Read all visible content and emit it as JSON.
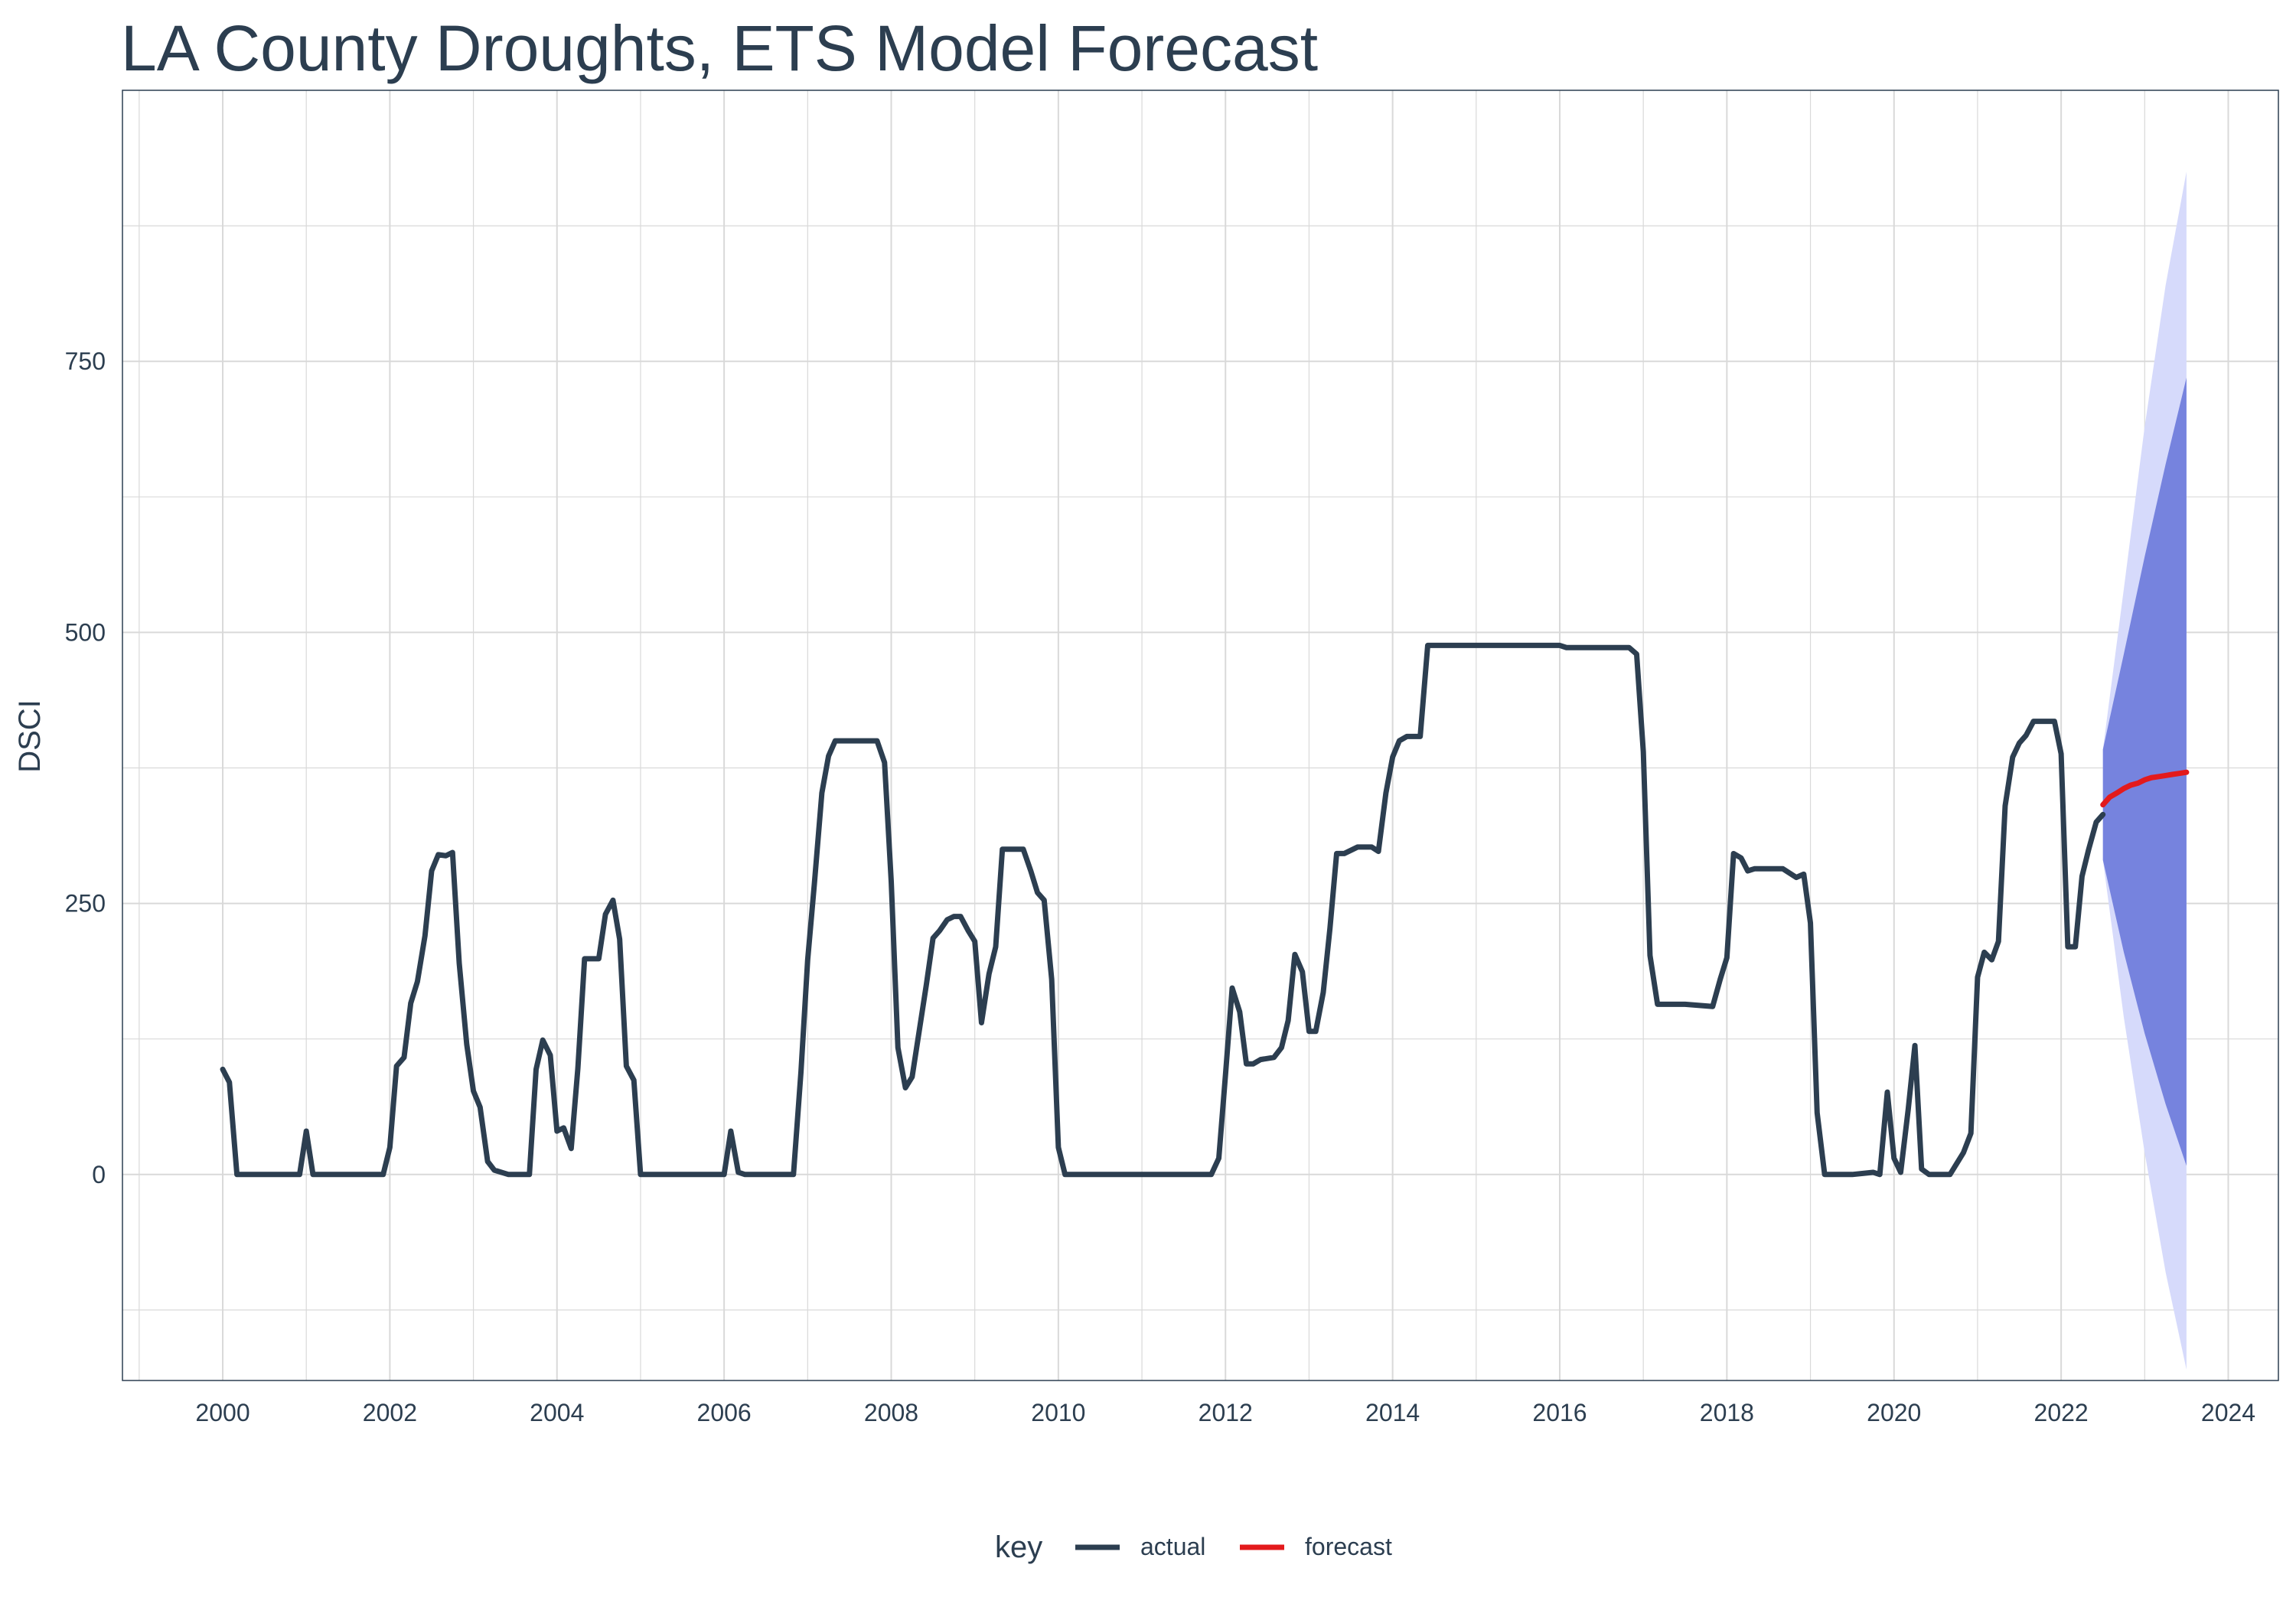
{
  "chart_data": {
    "type": "line",
    "title": "LA County Droughts, ETS Model Forecast",
    "xlabel": "",
    "ylabel": "DSCI",
    "xlim": [
      1998.8,
      2024.6
    ],
    "ylim": [
      -190,
      1000
    ],
    "x_ticks": [
      2000,
      2002,
      2004,
      2006,
      2008,
      2010,
      2012,
      2014,
      2016,
      2018,
      2020,
      2022,
      2024
    ],
    "y_ticks": [
      0,
      250,
      500,
      750
    ],
    "grid": true,
    "legend": {
      "title": "key",
      "position": "bottom",
      "entries": [
        {
          "label": "actual",
          "color": "#2c3e50"
        },
        {
          "label": "forecast",
          "color": "#e31a1c"
        }
      ]
    },
    "colors": {
      "actual": "#2c3e50",
      "forecast": "#e31a1c",
      "ci_80": "#7683de",
      "ci_95": "#d6dafb"
    },
    "series": [
      {
        "name": "actual",
        "points": [
          [
            2000.0,
            97
          ],
          [
            2000.08,
            85
          ],
          [
            2000.17,
            0
          ],
          [
            2000.5,
            0
          ],
          [
            2000.92,
            0
          ],
          [
            2001.0,
            40
          ],
          [
            2001.08,
            0
          ],
          [
            2001.5,
            0
          ],
          [
            2001.92,
            0
          ],
          [
            2002.0,
            25
          ],
          [
            2002.08,
            100
          ],
          [
            2002.17,
            108
          ],
          [
            2002.25,
            158
          ],
          [
            2002.33,
            178
          ],
          [
            2002.42,
            220
          ],
          [
            2002.5,
            280
          ],
          [
            2002.58,
            295
          ],
          [
            2002.67,
            294
          ],
          [
            2002.75,
            297
          ],
          [
            2002.83,
            195
          ],
          [
            2002.92,
            120
          ],
          [
            2003.0,
            77
          ],
          [
            2003.08,
            62
          ],
          [
            2003.17,
            12
          ],
          [
            2003.25,
            4
          ],
          [
            2003.42,
            0
          ],
          [
            2003.67,
            0
          ],
          [
            2003.75,
            97
          ],
          [
            2003.83,
            124
          ],
          [
            2003.92,
            110
          ],
          [
            2004.0,
            40
          ],
          [
            2004.08,
            43
          ],
          [
            2004.17,
            24
          ],
          [
            2004.25,
            98
          ],
          [
            2004.33,
            199
          ],
          [
            2004.5,
            199
          ],
          [
            2004.58,
            240
          ],
          [
            2004.67,
            253
          ],
          [
            2004.75,
            217
          ],
          [
            2004.83,
            100
          ],
          [
            2004.92,
            87
          ],
          [
            2005.0,
            0
          ],
          [
            2005.5,
            0
          ],
          [
            2006.0,
            0
          ],
          [
            2006.08,
            40
          ],
          [
            2006.17,
            2
          ],
          [
            2006.25,
            0
          ],
          [
            2006.5,
            0
          ],
          [
            2006.83,
            0
          ],
          [
            2006.92,
            95
          ],
          [
            2007.0,
            198
          ],
          [
            2007.08,
            268
          ],
          [
            2007.17,
            352
          ],
          [
            2007.25,
            386
          ],
          [
            2007.33,
            400
          ],
          [
            2007.5,
            400
          ],
          [
            2007.83,
            400
          ],
          [
            2007.92,
            380
          ],
          [
            2008.0,
            270
          ],
          [
            2008.08,
            117
          ],
          [
            2008.17,
            80
          ],
          [
            2008.25,
            90
          ],
          [
            2008.33,
            130
          ],
          [
            2008.42,
            175
          ],
          [
            2008.5,
            218
          ],
          [
            2008.58,
            225
          ],
          [
            2008.67,
            235
          ],
          [
            2008.75,
            238
          ],
          [
            2008.83,
            238
          ],
          [
            2008.92,
            225
          ],
          [
            2009.0,
            215
          ],
          [
            2009.08,
            140
          ],
          [
            2009.17,
            185
          ],
          [
            2009.25,
            210
          ],
          [
            2009.33,
            300
          ],
          [
            2009.5,
            300
          ],
          [
            2009.58,
            300
          ],
          [
            2009.67,
            280
          ],
          [
            2009.75,
            260
          ],
          [
            2009.83,
            253
          ],
          [
            2009.92,
            180
          ],
          [
            2010.0,
            25
          ],
          [
            2010.08,
            0
          ],
          [
            2010.5,
            0
          ],
          [
            2011.0,
            0
          ],
          [
            2011.5,
            0
          ],
          [
            2011.83,
            0
          ],
          [
            2011.92,
            15
          ],
          [
            2012.0,
            92
          ],
          [
            2012.08,
            172
          ],
          [
            2012.17,
            150
          ],
          [
            2012.25,
            102
          ],
          [
            2012.33,
            102
          ],
          [
            2012.42,
            106
          ],
          [
            2012.58,
            108
          ],
          [
            2012.67,
            117
          ],
          [
            2012.75,
            142
          ],
          [
            2012.83,
            203
          ],
          [
            2012.92,
            187
          ],
          [
            2013.0,
            132
          ],
          [
            2013.08,
            132
          ],
          [
            2013.17,
            168
          ],
          [
            2013.25,
            227
          ],
          [
            2013.33,
            296
          ],
          [
            2013.42,
            296
          ],
          [
            2013.58,
            302
          ],
          [
            2013.75,
            302
          ],
          [
            2013.83,
            298
          ],
          [
            2013.92,
            352
          ],
          [
            2014.0,
            385
          ],
          [
            2014.08,
            400
          ],
          [
            2014.17,
            404
          ],
          [
            2014.33,
            404
          ],
          [
            2014.42,
            488
          ],
          [
            2014.5,
            488
          ],
          [
            2015.0,
            488
          ],
          [
            2015.5,
            488
          ],
          [
            2016.0,
            488
          ],
          [
            2016.08,
            486
          ],
          [
            2016.5,
            486
          ],
          [
            2016.83,
            486
          ],
          [
            2016.92,
            480
          ],
          [
            2017.0,
            390
          ],
          [
            2017.08,
            202
          ],
          [
            2017.17,
            157
          ],
          [
            2017.5,
            157
          ],
          [
            2017.83,
            155
          ],
          [
            2017.92,
            180
          ],
          [
            2018.0,
            200
          ],
          [
            2018.08,
            296
          ],
          [
            2018.17,
            292
          ],
          [
            2018.25,
            280
          ],
          [
            2018.33,
            282
          ],
          [
            2018.67,
            282
          ],
          [
            2018.83,
            274
          ],
          [
            2018.92,
            277
          ],
          [
            2019.0,
            232
          ],
          [
            2019.08,
            57
          ],
          [
            2019.17,
            0
          ],
          [
            2019.5,
            0
          ],
          [
            2019.75,
            2
          ],
          [
            2019.83,
            0
          ],
          [
            2019.92,
            76
          ],
          [
            2020.0,
            15
          ],
          [
            2020.08,
            2
          ],
          [
            2020.17,
            60
          ],
          [
            2020.25,
            119
          ],
          [
            2020.33,
            5
          ],
          [
            2020.42,
            0
          ],
          [
            2020.67,
            0
          ],
          [
            2020.75,
            10
          ],
          [
            2020.83,
            20
          ],
          [
            2020.92,
            38
          ],
          [
            2021.0,
            182
          ],
          [
            2021.08,
            205
          ],
          [
            2021.17,
            198
          ],
          [
            2021.25,
            215
          ],
          [
            2021.33,
            340
          ],
          [
            2021.42,
            385
          ],
          [
            2021.5,
            398
          ],
          [
            2021.58,
            405
          ],
          [
            2021.67,
            418
          ],
          [
            2021.75,
            418
          ],
          [
            2021.92,
            418
          ],
          [
            2022.0,
            388
          ],
          [
            2022.08,
            210
          ],
          [
            2022.17,
            210
          ],
          [
            2022.25,
            275
          ],
          [
            2022.33,
            300
          ],
          [
            2022.42,
            325
          ],
          [
            2022.5,
            332
          ]
        ]
      },
      {
        "name": "forecast",
        "points": [
          [
            2022.5,
            341
          ],
          [
            2022.58,
            348
          ],
          [
            2022.67,
            352
          ],
          [
            2022.75,
            356
          ],
          [
            2022.83,
            359
          ],
          [
            2022.92,
            361
          ],
          [
            2023.0,
            364
          ],
          [
            2023.08,
            366
          ],
          [
            2023.17,
            367
          ],
          [
            2023.25,
            368
          ],
          [
            2023.33,
            369
          ],
          [
            2023.42,
            370
          ],
          [
            2023.5,
            371
          ]
        ]
      }
    ],
    "intervals": [
      {
        "level": "95",
        "x": [
          2022.5,
          2022.75,
          2023.0,
          2023.25,
          2023.5
        ],
        "lo": [
          290,
          145,
          20,
          -90,
          -180
        ],
        "hi": [
          392,
          540,
          690,
          820,
          925
        ]
      },
      {
        "level": "80",
        "x": [
          2022.5,
          2022.75,
          2023.0,
          2023.25,
          2023.5
        ],
        "lo": [
          290,
          205,
          130,
          65,
          8
        ],
        "hi": [
          392,
          480,
          570,
          655,
          735
        ]
      }
    ]
  }
}
